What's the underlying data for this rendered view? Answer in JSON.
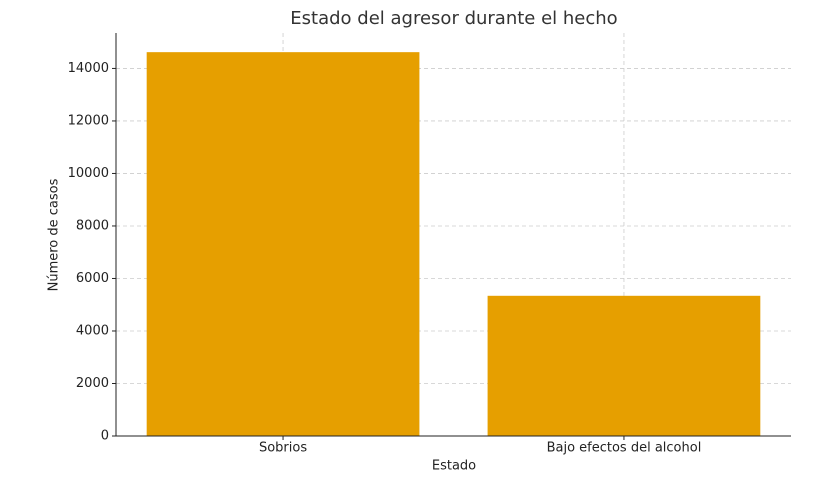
{
  "chart_data": {
    "type": "bar",
    "title": "Estado del agresor durante el hecho",
    "x_label": "Estado",
    "y_label": "Número de casos",
    "categories": [
      "Sobrios",
      "Bajo efectos del alcohol"
    ],
    "values": [
      14620,
      5340
    ],
    "color": "#E69F00",
    "ylim": [
      0,
      15350
    ],
    "yticks": [
      0,
      2000,
      4000,
      6000,
      8000,
      10000,
      12000,
      14000
    ],
    "grid": true
  }
}
